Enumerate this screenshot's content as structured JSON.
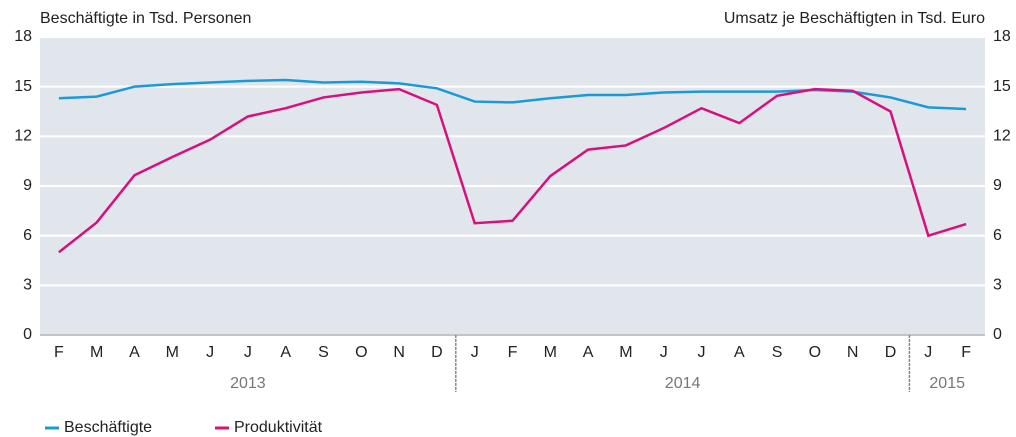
{
  "chart_data": {
    "type": "line",
    "ylabel": "Beschäftigte in Tsd. Personen",
    "y2label": "Umsatz je Beschäftigten in Tsd. Euro",
    "categories": [
      "F",
      "M",
      "A",
      "M",
      "J",
      "J",
      "A",
      "S",
      "O",
      "N",
      "D",
      "J",
      "F",
      "M",
      "A",
      "M",
      "J",
      "J",
      "A",
      "S",
      "O",
      "N",
      "D",
      "J",
      "F"
    ],
    "category_years": [
      "2013",
      "2013",
      "2013",
      "2013",
      "2013",
      "2013",
      "2013",
      "2013",
      "2013",
      "2013",
      "2013",
      "2014",
      "2014",
      "2014",
      "2014",
      "2014",
      "2014",
      "2014",
      "2014",
      "2014",
      "2014",
      "2014",
      "2014",
      "2015",
      "2015"
    ],
    "series": [
      {
        "name": "Beschäftigte",
        "color": "#1b9ad6",
        "axis": "y",
        "values": [
          14.3,
          14.4,
          15.0,
          15.15,
          15.25,
          15.35,
          15.4,
          15.25,
          15.3,
          15.2,
          14.9,
          14.1,
          14.05,
          14.3,
          14.5,
          14.5,
          14.65,
          14.7,
          14.7,
          14.7,
          14.8,
          14.7,
          14.35,
          13.75,
          13.65
        ]
      },
      {
        "name": "Produktivität",
        "color": "#d6117e",
        "axis": "y2",
        "values": [
          5.0,
          6.8,
          9.65,
          10.75,
          11.8,
          13.2,
          13.7,
          14.35,
          14.65,
          14.85,
          13.9,
          6.75,
          6.9,
          9.6,
          11.2,
          11.45,
          12.5,
          13.7,
          12.8,
          14.45,
          14.85,
          14.75,
          13.5,
          6.0,
          6.7
        ]
      }
    ],
    "ylim": [
      0,
      18
    ],
    "yticks": [
      0,
      3,
      6,
      9,
      12,
      15,
      18
    ],
    "y2lim": [
      0,
      18
    ],
    "y2ticks": [
      0,
      3,
      6,
      9,
      12,
      15,
      18
    ],
    "grid": true,
    "legend": "bottom-left"
  }
}
